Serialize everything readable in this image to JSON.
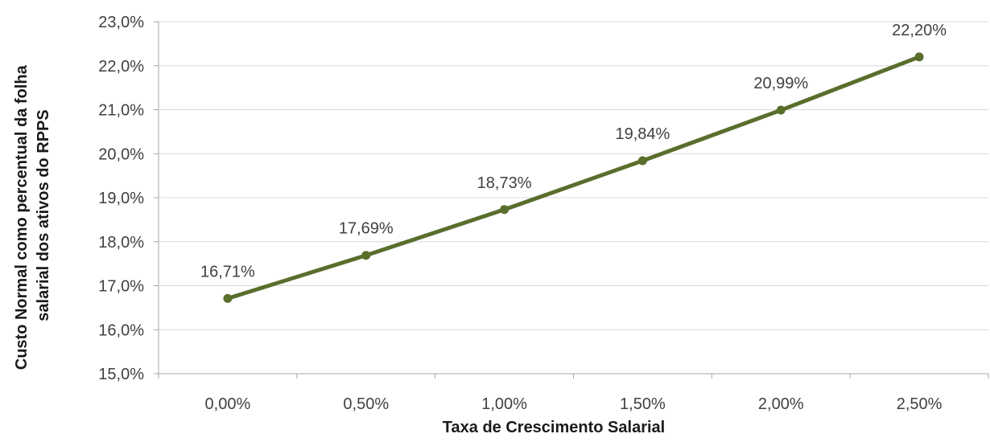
{
  "chart_data": {
    "type": "line",
    "xlabel": "Taxa de Crescimento Salarial",
    "ylabel": "Custo Normal como percentual da folha salarial dos ativos do RPPS",
    "ylabel_lines": [
      "Custo Normal como percentual da folha",
      "salarial dos ativos do RPPS"
    ],
    "categories": [
      "0,00%",
      "0,50%",
      "1,00%",
      "1,50%",
      "2,00%",
      "2,50%"
    ],
    "series": [
      {
        "values": [
          16.71,
          17.69,
          18.73,
          19.84,
          20.99,
          22.2
        ],
        "data_labels": [
          "16,71%",
          "17,69%",
          "18,73%",
          "19,84%",
          "20,99%",
          "22,20%"
        ]
      }
    ],
    "ylim": [
      15,
      23
    ],
    "yticks": [
      15,
      16,
      17,
      18,
      19,
      20,
      21,
      22,
      23
    ],
    "ytick_labels": [
      "15,0%",
      "16,0%",
      "17,0%",
      "18,0%",
      "19,0%",
      "20,0%",
      "21,0%",
      "22,0%",
      "23,0%"
    ],
    "grid": true,
    "legend": "none",
    "line_color": "#5a6e2c"
  }
}
